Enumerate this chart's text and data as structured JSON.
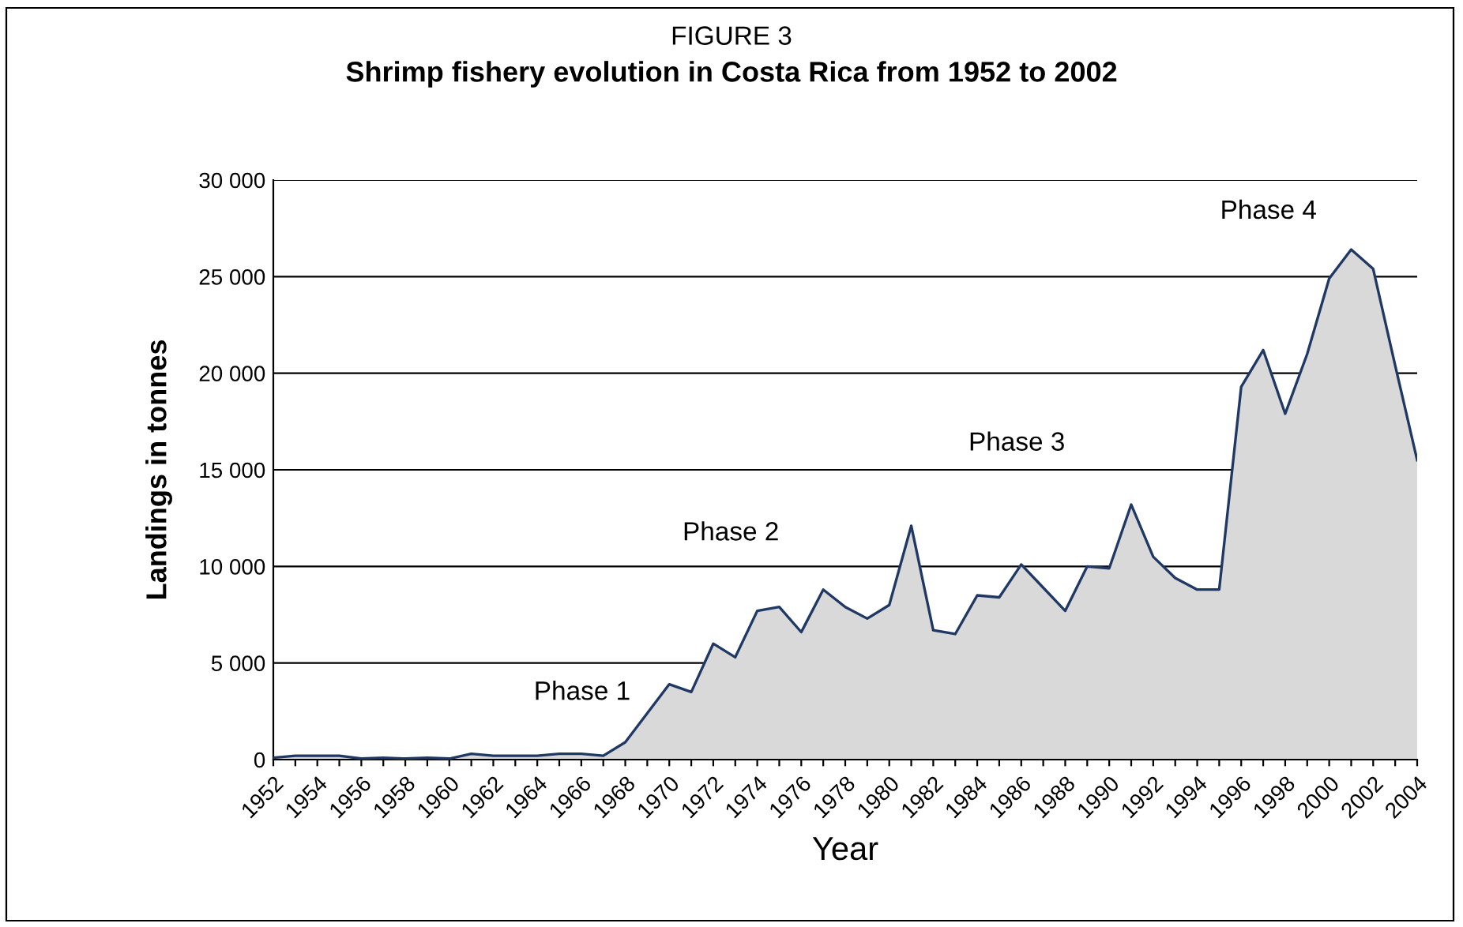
{
  "chart_data": {
    "type": "area",
    "title": "FIGURE 3",
    "subtitle": "Shrimp fishery evolution in Costa Rica from 1952 to 2002",
    "xlabel": "Year",
    "ylabel": "Landings in tonnes",
    "categories": [
      "1952",
      null,
      "1954",
      null,
      "1956",
      null,
      "1958",
      null,
      "1960",
      null,
      "1962",
      null,
      "1964",
      null,
      "1966",
      null,
      "1968",
      null,
      "1970",
      null,
      "1972",
      null,
      "1974",
      null,
      "1976",
      null,
      "1978",
      null,
      "1980",
      null,
      "1982",
      null,
      "1984",
      null,
      "1986",
      null,
      "1988",
      null,
      "1990",
      null,
      "1992",
      null,
      "1994",
      null,
      "1996",
      null,
      "1998",
      null,
      "2000",
      null,
      "2002",
      null,
      "2004"
    ],
    "series": [
      {
        "color": "#1f3864",
        "values": [
          100,
          200,
          200,
          200,
          50,
          100,
          50,
          100,
          50,
          300,
          200,
          200,
          200,
          300,
          300,
          200,
          900,
          2400,
          3900,
          3500,
          6000,
          5300,
          7700,
          7900,
          6600,
          8800,
          7900,
          7300,
          8000,
          12100,
          6700,
          6500,
          8500,
          8400,
          10100,
          8900,
          7700,
          10000,
          9900,
          13200,
          10500,
          9400,
          8800,
          8800,
          19300,
          21200,
          17900,
          21000,
          24900,
          26400,
          25400,
          20400,
          15500
        ]
      }
    ],
    "ylim": [
      0,
      30000
    ],
    "yticks": [
      0,
      {
        "value": 5000,
        "label": "5 000"
      },
      {
        "value": 10000,
        "label": "10 000"
      },
      {
        "value": 15000,
        "label": "15 000"
      },
      {
        "value": 20000,
        "label": "20 000"
      },
      {
        "value": 25000,
        "label": "25 000"
      },
      {
        "value": 30000,
        "label": "30 000"
      }
    ],
    "grid": "y",
    "legend": false,
    "annotations": [
      "Phase 1",
      "Phase 2",
      "Phase 3",
      "Phase 4"
    ]
  }
}
